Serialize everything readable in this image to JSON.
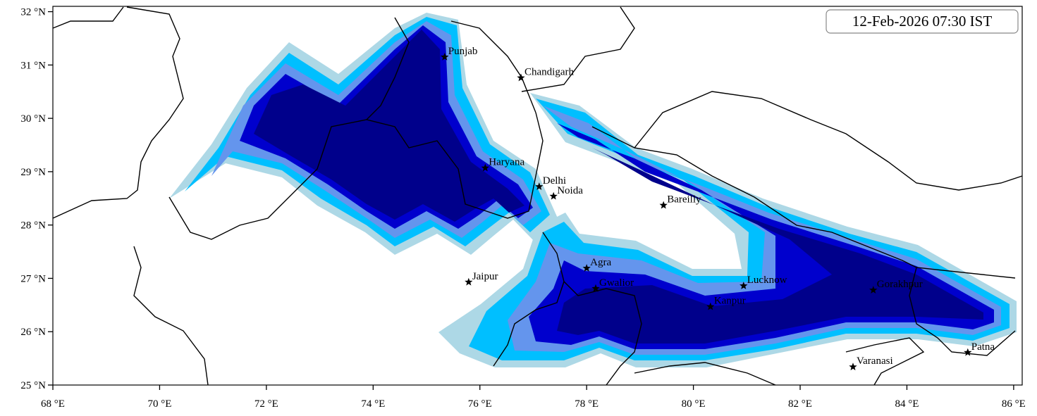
{
  "map": {
    "title": "12-Feb-2026 07:30 IST",
    "xlim": [
      68,
      86.16
    ],
    "ylim": [
      25,
      32.1
    ],
    "xticks": [
      {
        "value": 68,
        "label": "68 °E"
      },
      {
        "value": 70,
        "label": "70 °E"
      },
      {
        "value": 72,
        "label": "72 °E"
      },
      {
        "value": 74,
        "label": "74 °E"
      },
      {
        "value": 76,
        "label": "76 °E"
      },
      {
        "value": 78,
        "label": "78 °E"
      },
      {
        "value": 80,
        "label": "80 °E"
      },
      {
        "value": 82,
        "label": "82 °E"
      },
      {
        "value": 84,
        "label": "84 °E"
      },
      {
        "value": 86,
        "label": "86 °E"
      }
    ],
    "yticks": [
      {
        "value": 25,
        "label": "25 °N"
      },
      {
        "value": 26,
        "label": "26 °N"
      },
      {
        "value": 27,
        "label": "27 °N"
      },
      {
        "value": 28,
        "label": "28 °N"
      },
      {
        "value": 29,
        "label": "29 °N"
      },
      {
        "value": 30,
        "label": "30 °N"
      },
      {
        "value": 31,
        "label": "31 °N"
      },
      {
        "value": 32,
        "label": "32 °N"
      }
    ],
    "cities": [
      {
        "name": "Punjab",
        "lon": 75.34,
        "lat": 31.15
      },
      {
        "name": "Chandigarh",
        "lon": 76.77,
        "lat": 30.76
      },
      {
        "name": "Haryana",
        "lon": 76.1,
        "lat": 29.07
      },
      {
        "name": "Delhi",
        "lon": 77.11,
        "lat": 28.72
      },
      {
        "name": "Noida",
        "lon": 77.38,
        "lat": 28.54
      },
      {
        "name": "Bareilly",
        "lon": 79.44,
        "lat": 28.37
      },
      {
        "name": "Agra",
        "lon": 78.0,
        "lat": 27.19
      },
      {
        "name": "Jaipur",
        "lon": 75.79,
        "lat": 26.93
      },
      {
        "name": "Gwalior",
        "lon": 78.17,
        "lat": 26.81
      },
      {
        "name": "Lucknow",
        "lon": 80.94,
        "lat": 26.86
      },
      {
        "name": "Kanpur",
        "lon": 80.32,
        "lat": 26.47
      },
      {
        "name": "Gorakhpur",
        "lon": 83.37,
        "lat": 26.78
      },
      {
        "name": "Varanasi",
        "lon": 82.99,
        "lat": 25.34
      },
      {
        "name": "Patna",
        "lon": 85.14,
        "lat": 25.61
      }
    ]
  }
}
